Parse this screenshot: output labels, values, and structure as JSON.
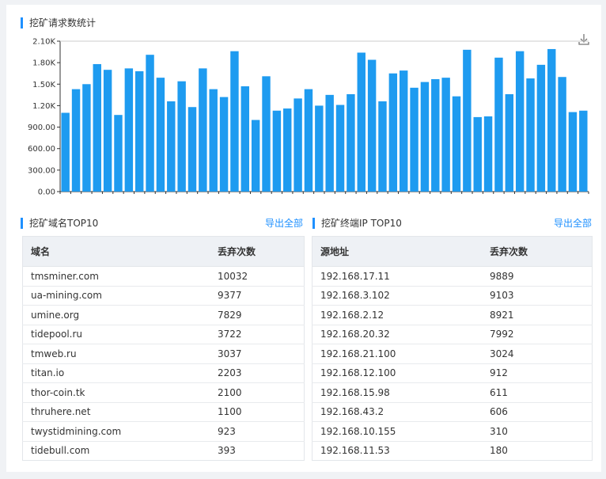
{
  "chart": {
    "title": "挖矿请求数统计",
    "download_icon": "download-icon",
    "chart_data": {
      "type": "bar",
      "title": "挖矿请求数统计",
      "ylim": [
        0,
        2100
      ],
      "yticks": [
        "0.00",
        "300.00",
        "600.00",
        "900.00",
        "1.20K",
        "1.50K",
        "1.80K",
        "2.10K"
      ],
      "grid": false,
      "values": [
        1100,
        1430,
        1500,
        1780,
        1700,
        1070,
        1720,
        1680,
        1910,
        1590,
        1260,
        1540,
        1180,
        1720,
        1430,
        1320,
        1960,
        1470,
        1000,
        1610,
        1130,
        1160,
        1300,
        1430,
        1200,
        1350,
        1210,
        1360,
        1940,
        1840,
        1260,
        1650,
        1690,
        1450,
        1530,
        1570,
        1590,
        1330,
        1980,
        1040,
        1050,
        1870,
        1360,
        1960,
        1580,
        1770,
        1990,
        1600,
        1110,
        1130
      ],
      "color": "#1e9bf0"
    }
  },
  "domain_panel": {
    "title": "挖矿域名TOP10",
    "export_label": "导出全部",
    "columns": [
      "域名",
      "丢弃次数"
    ],
    "rows": [
      [
        "tmsminer.com",
        "10032"
      ],
      [
        "ua-mining.com",
        "9377"
      ],
      [
        "umine.org",
        "7829"
      ],
      [
        "tidepool.ru",
        "3722"
      ],
      [
        "tmweb.ru",
        "3037"
      ],
      [
        "titan.io",
        "2203"
      ],
      [
        "thor-coin.tk",
        "2100"
      ],
      [
        "thruhere.net",
        "1100"
      ],
      [
        "twystidmining.com",
        "923"
      ],
      [
        "tidebull.com",
        "393"
      ]
    ]
  },
  "ip_panel": {
    "title": "挖矿终端IP TOP10",
    "export_label": "导出全部",
    "columns": [
      "源地址",
      "丢弃次数"
    ],
    "rows": [
      [
        "192.168.17.11",
        "9889"
      ],
      [
        "192.168.3.102",
        "9103"
      ],
      [
        "192.168.2.12",
        "8921"
      ],
      [
        "192.168.20.32",
        "7992"
      ],
      [
        "192.168.21.100",
        "3024"
      ],
      [
        "192.168.12.100",
        "912"
      ],
      [
        "192.168.15.98",
        "611"
      ],
      [
        "192.168.43.2",
        "606"
      ],
      [
        "192.168.10.155",
        "310"
      ],
      [
        "192.168.11.53",
        "180"
      ]
    ]
  }
}
